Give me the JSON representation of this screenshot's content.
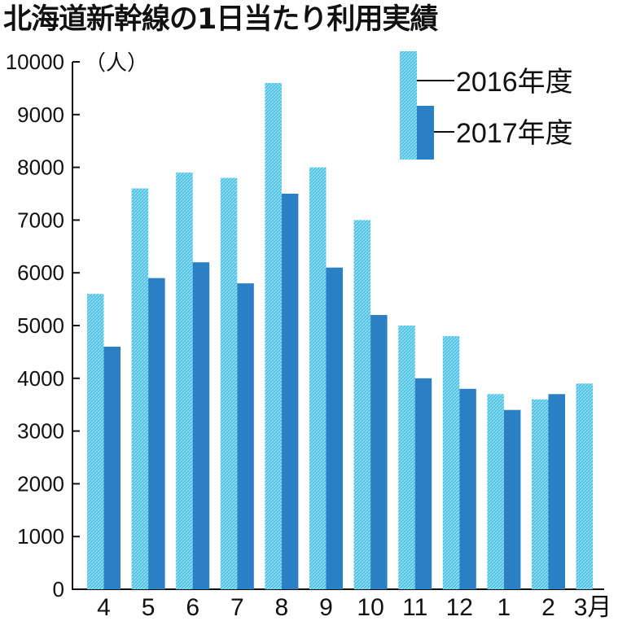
{
  "chart_data": {
    "type": "bar",
    "title": "北海道新幹線の1日当たり利用実績",
    "unit": "（人）",
    "categories": [
      "4",
      "5",
      "6",
      "7",
      "8",
      "9",
      "10",
      "11",
      "12",
      "1",
      "2",
      "3月"
    ],
    "series": [
      {
        "name": "2016年度",
        "color": "#4ec3e6",
        "values": [
          5600,
          7600,
          7900,
          7800,
          9600,
          8000,
          7000,
          5000,
          4800,
          3700,
          3600,
          3900
        ]
      },
      {
        "name": "2017年度",
        "color": "#2b7fc4",
        "values": [
          4600,
          5900,
          6200,
          5800,
          7500,
          6100,
          5200,
          4000,
          3800,
          3400,
          3700,
          null
        ]
      }
    ],
    "y_ticks": [
      "0",
      "1000",
      "2000",
      "3000",
      "4000",
      "5000",
      "6000",
      "7000",
      "8000",
      "9000",
      "10000"
    ],
    "ylim": [
      0,
      10000
    ],
    "grid": false,
    "legend": "top-right"
  }
}
